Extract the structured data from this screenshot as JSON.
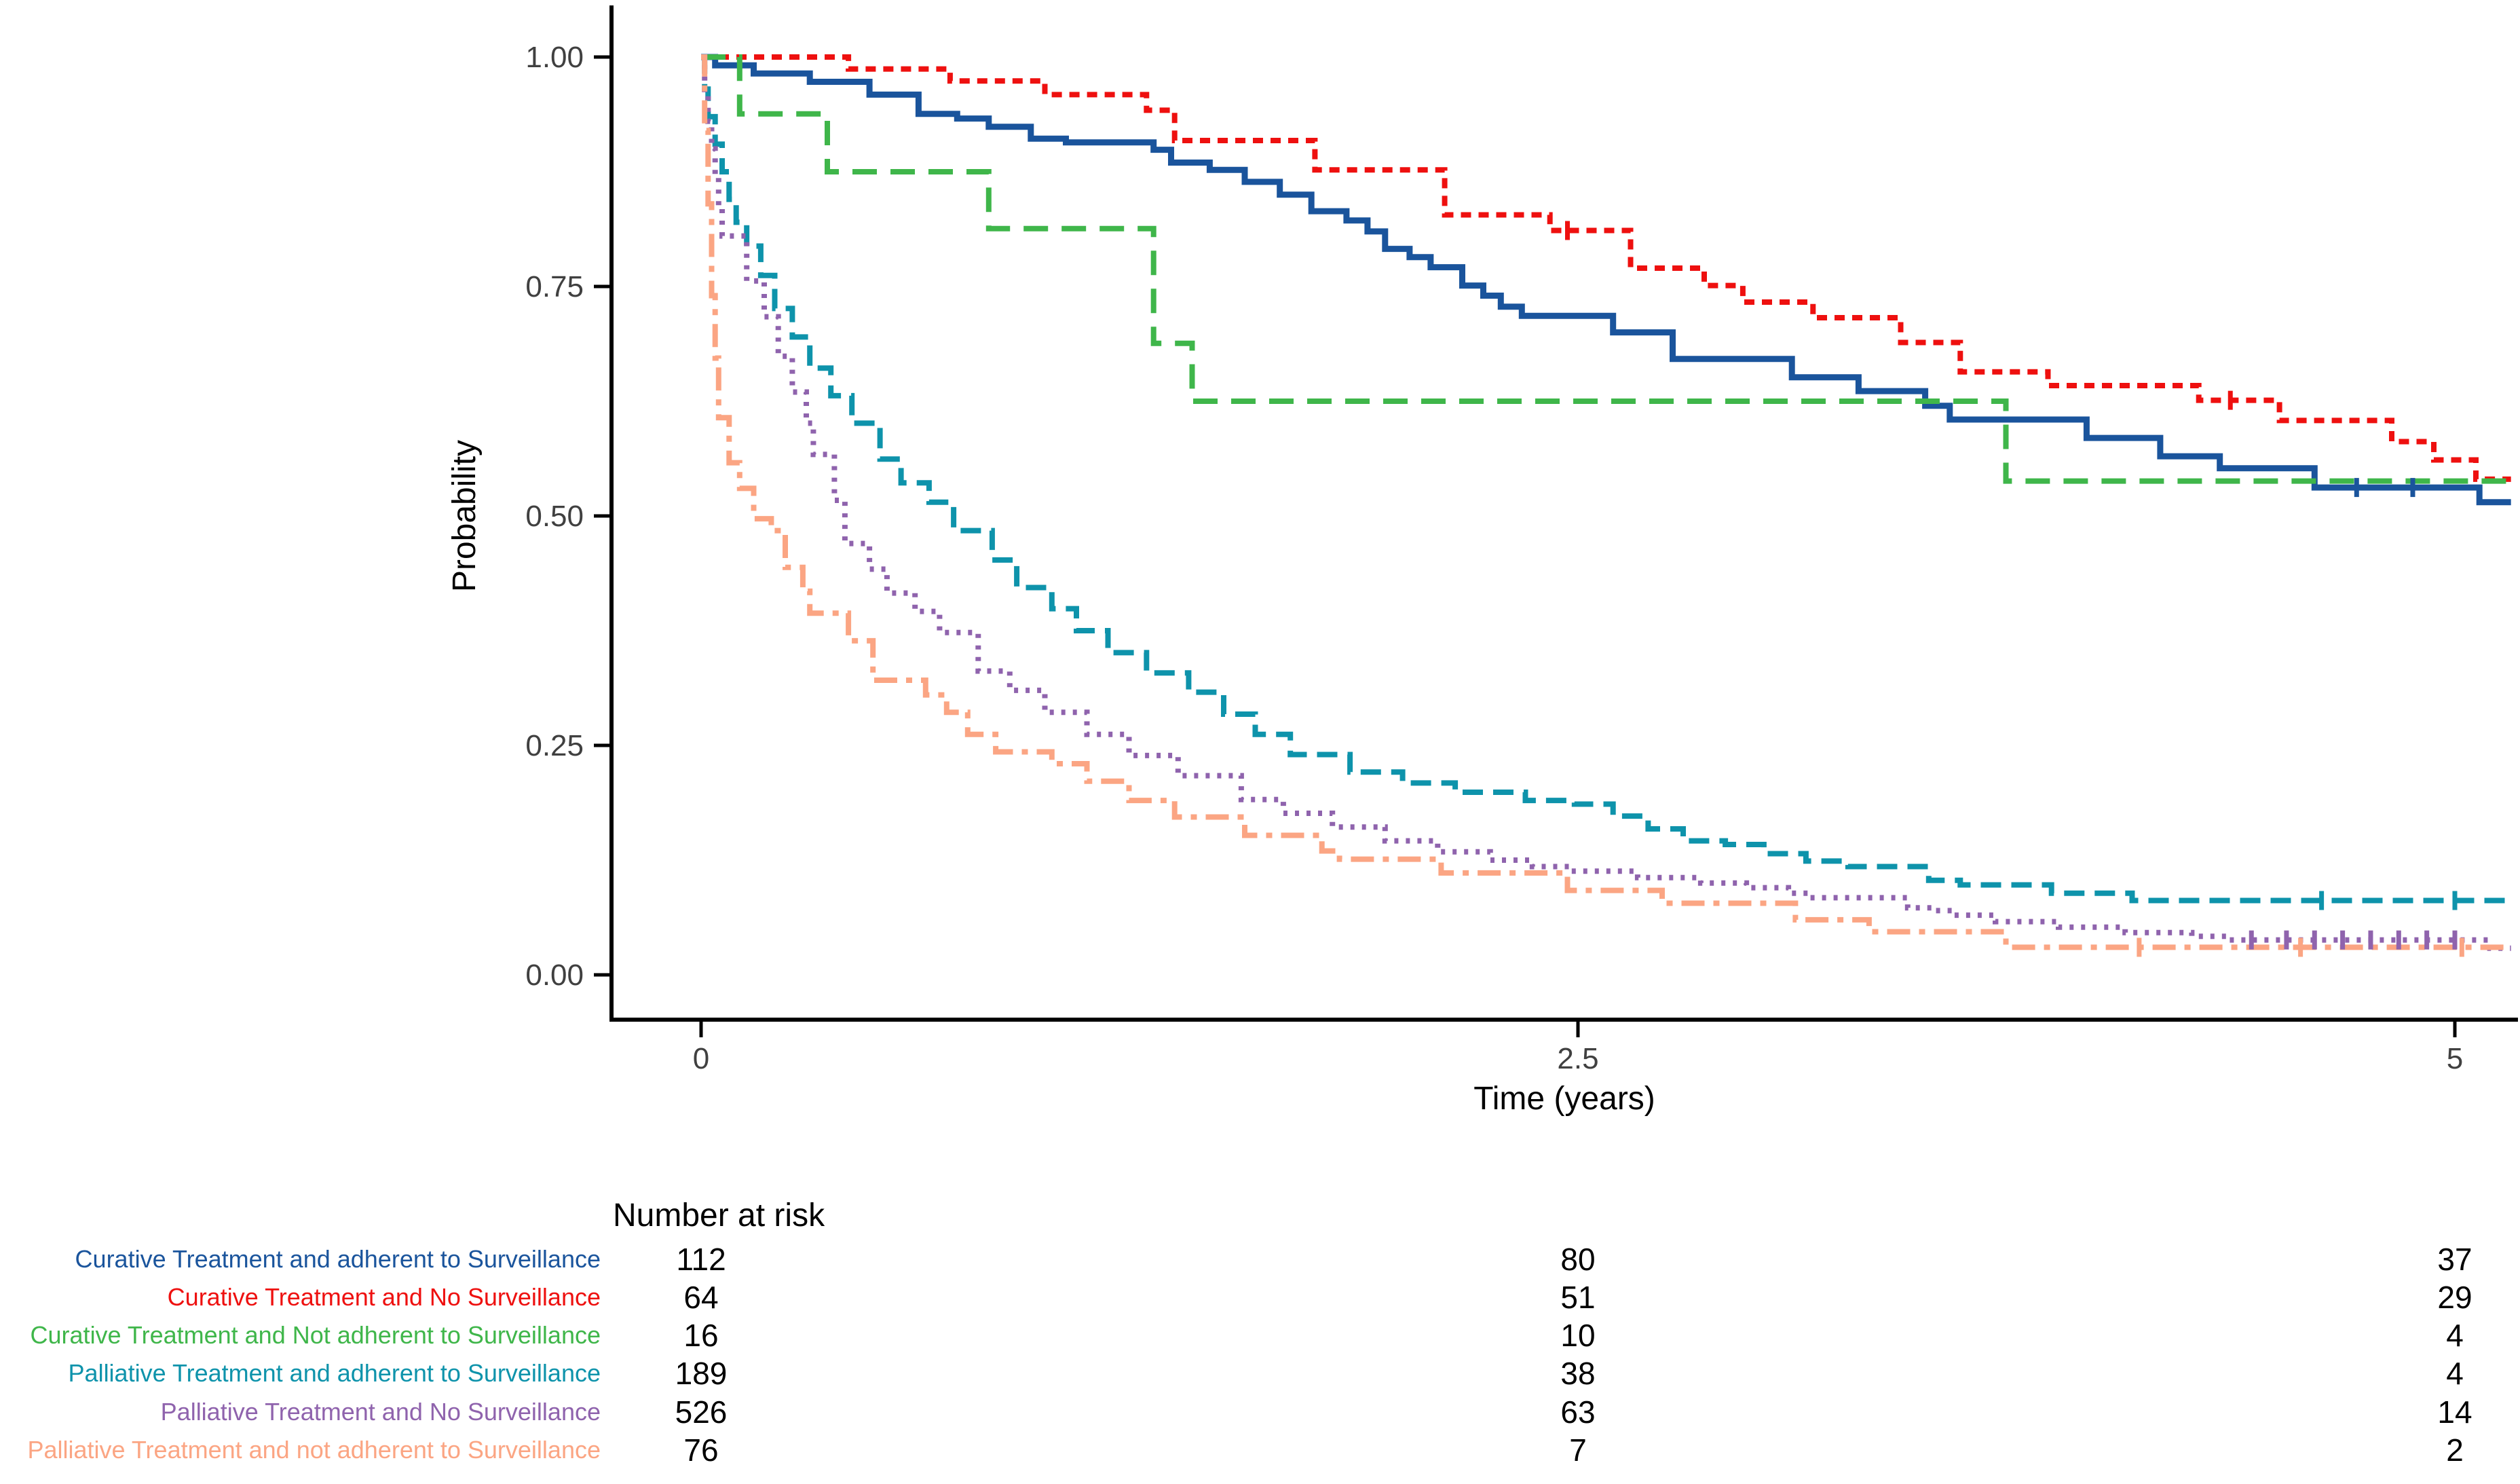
{
  "figure": {
    "y_axis": {
      "label": "Probability",
      "tick_labels": [
        "1.00",
        "0.75",
        "0.50",
        "0.25",
        "0.00"
      ],
      "tick_values": [
        1.0,
        0.75,
        0.5,
        0.25,
        0.0
      ]
    },
    "x_axis": {
      "label": "Time (years)",
      "tick_labels": [
        "0",
        "2.5",
        "5"
      ],
      "tick_values": [
        0,
        2.5,
        5
      ]
    }
  },
  "risk_table": {
    "title": "Number at risk",
    "time_values": [
      0,
      2.5,
      5
    ],
    "rows": [
      {
        "label": "Curative Treatment and adherent to Surveillance",
        "color": "#1a549c",
        "values": [
          "112",
          "80",
          "37"
        ]
      },
      {
        "label": "Curative Treatment and No Surveillance",
        "color": "#ee100f",
        "values": [
          "64",
          "51",
          "29"
        ]
      },
      {
        "label": "Curative Treatment and Not adherent to Surveillance",
        "color": "#3fb64a",
        "values": [
          "16",
          "10",
          "4"
        ]
      },
      {
        "label": "Palliative Treatment and adherent to Surveillance",
        "color": "#0e93ab",
        "values": [
          "189",
          "38",
          "4"
        ]
      },
      {
        "label": "Palliative Treatment and No Surveillance",
        "color": "#8f63ad",
        "values": [
          "526",
          "63",
          "14"
        ]
      },
      {
        "label": "Palliative Treatment and not adherent to Surveillance",
        "color": "#fba583",
        "values": [
          "76",
          "7",
          "2"
        ]
      }
    ]
  },
  "chart_data": {
    "type": "line",
    "subtype": "kaplan-meier-step",
    "title": "",
    "xlabel": "Time (years)",
    "ylabel": "Probability",
    "xlim": [
      -0.26,
      5.19
    ],
    "ylim": [
      0.0,
      1.0
    ],
    "x_ticks": [
      0,
      2.5,
      5
    ],
    "y_ticks": [
      0.0,
      0.25,
      0.5,
      0.75,
      1.0
    ],
    "grid": false,
    "legend_position": "none",
    "draw_end_time": 5.16,
    "series": [
      {
        "name": "Curative Treatment and adherent to Surveillance",
        "color": "#1a549c",
        "linetype": "solid",
        "points": [
          [
            0,
            1.0
          ],
          [
            0.04,
            0.991
          ],
          [
            0.15,
            0.982
          ],
          [
            0.31,
            0.973
          ],
          [
            0.48,
            0.959
          ],
          [
            0.62,
            0.938
          ],
          [
            0.73,
            0.933
          ],
          [
            0.82,
            0.924
          ],
          [
            0.94,
            0.911
          ],
          [
            1.04,
            0.907
          ],
          [
            1.29,
            0.899
          ],
          [
            1.34,
            0.885
          ],
          [
            1.45,
            0.877
          ],
          [
            1.55,
            0.864
          ],
          [
            1.65,
            0.85
          ],
          [
            1.74,
            0.832
          ],
          [
            1.84,
            0.822
          ],
          [
            1.9,
            0.81
          ],
          [
            1.95,
            0.791
          ],
          [
            2.02,
            0.782
          ],
          [
            2.08,
            0.771
          ],
          [
            2.17,
            0.751
          ],
          [
            2.23,
            0.74
          ],
          [
            2.28,
            0.728
          ],
          [
            2.34,
            0.718
          ],
          [
            2.6,
            0.7
          ],
          [
            2.77,
            0.671
          ],
          [
            3.11,
            0.651
          ],
          [
            3.3,
            0.636
          ],
          [
            3.49,
            0.62
          ],
          [
            3.56,
            0.605
          ],
          [
            3.95,
            0.585
          ],
          [
            4.16,
            0.565
          ],
          [
            4.33,
            0.552
          ],
          [
            4.6,
            0.531
          ],
          [
            5.07,
            0.515
          ]
        ],
        "censor_marks": [
          [
            4.72,
            0.531
          ],
          [
            4.88,
            0.531
          ]
        ]
      },
      {
        "name": "Curative Treatment and No Surveillance",
        "color": "#ee100f",
        "linetype": "dotted",
        "points": [
          [
            0,
            1.0
          ],
          [
            0.42,
            0.987
          ],
          [
            0.71,
            0.974
          ],
          [
            0.98,
            0.959
          ],
          [
            1.27,
            0.942
          ],
          [
            1.35,
            0.909
          ],
          [
            1.75,
            0.877
          ],
          [
            2.12,
            0.828
          ],
          [
            2.42,
            0.811
          ],
          [
            2.65,
            0.77
          ],
          [
            2.86,
            0.751
          ],
          [
            2.97,
            0.733
          ],
          [
            3.17,
            0.716
          ],
          [
            3.42,
            0.689
          ],
          [
            3.59,
            0.657
          ],
          [
            3.84,
            0.642
          ],
          [
            4.27,
            0.626
          ],
          [
            4.5,
            0.604
          ],
          [
            4.82,
            0.581
          ],
          [
            4.94,
            0.561
          ],
          [
            5.06,
            0.54
          ]
        ],
        "censor_marks": [
          [
            2.47,
            0.811
          ],
          [
            4.36,
            0.626
          ]
        ]
      },
      {
        "name": "Curative Treatment and Not adherent to Surveillance",
        "color": "#3fb64a",
        "linetype": "dashed",
        "points": [
          [
            0,
            1.0
          ],
          [
            0.11,
            0.938
          ],
          [
            0.36,
            0.875
          ],
          [
            0.82,
            0.813
          ],
          [
            1.29,
            0.688
          ],
          [
            1.4,
            0.625
          ],
          [
            3.72,
            0.538
          ]
        ],
        "censor_marks": []
      },
      {
        "name": "Palliative Treatment and adherent to Surveillance",
        "color": "#0e93ab",
        "linetype": "longdash",
        "points": [
          [
            0,
            1.0
          ],
          [
            0.01,
            0.965
          ],
          [
            0.02,
            0.935
          ],
          [
            0.04,
            0.905
          ],
          [
            0.06,
            0.875
          ],
          [
            0.08,
            0.845
          ],
          [
            0.1,
            0.82
          ],
          [
            0.13,
            0.794
          ],
          [
            0.17,
            0.762
          ],
          [
            0.21,
            0.726
          ],
          [
            0.26,
            0.695
          ],
          [
            0.31,
            0.661
          ],
          [
            0.37,
            0.631
          ],
          [
            0.43,
            0.601
          ],
          [
            0.51,
            0.562
          ],
          [
            0.57,
            0.536
          ],
          [
            0.65,
            0.515
          ],
          [
            0.72,
            0.484
          ],
          [
            0.83,
            0.452
          ],
          [
            0.9,
            0.422
          ],
          [
            1.0,
            0.399
          ],
          [
            1.07,
            0.375
          ],
          [
            1.16,
            0.351
          ],
          [
            1.27,
            0.329
          ],
          [
            1.39,
            0.308
          ],
          [
            1.49,
            0.284
          ],
          [
            1.58,
            0.262
          ],
          [
            1.68,
            0.24
          ],
          [
            1.85,
            0.221
          ],
          [
            2.0,
            0.209
          ],
          [
            2.15,
            0.199
          ],
          [
            2.35,
            0.19
          ],
          [
            2.49,
            0.186
          ],
          [
            2.6,
            0.173
          ],
          [
            2.7,
            0.159
          ],
          [
            2.8,
            0.146
          ],
          [
            2.92,
            0.142
          ],
          [
            3.03,
            0.132
          ],
          [
            3.15,
            0.124
          ],
          [
            3.27,
            0.118
          ],
          [
            3.5,
            0.103
          ],
          [
            3.59,
            0.098
          ],
          [
            3.85,
            0.089
          ],
          [
            4.08,
            0.081
          ]
        ],
        "censor_marks": [
          [
            4.62,
            0.081
          ],
          [
            5.0,
            0.081
          ]
        ]
      },
      {
        "name": "Palliative Treatment and No Surveillance",
        "color": "#8f63ad",
        "linetype": "dot",
        "points": [
          [
            0,
            1.0
          ],
          [
            0.01,
            0.96
          ],
          [
            0.02,
            0.93
          ],
          [
            0.03,
            0.9
          ],
          [
            0.04,
            0.87
          ],
          [
            0.05,
            0.837
          ],
          [
            0.06,
            0.805
          ],
          [
            0.13,
            0.756
          ],
          [
            0.18,
            0.717
          ],
          [
            0.22,
            0.674
          ],
          [
            0.26,
            0.635
          ],
          [
            0.3,
            0.601
          ],
          [
            0.32,
            0.567
          ],
          [
            0.38,
            0.517
          ],
          [
            0.41,
            0.47
          ],
          [
            0.48,
            0.442
          ],
          [
            0.53,
            0.416
          ],
          [
            0.61,
            0.396
          ],
          [
            0.68,
            0.373
          ],
          [
            0.79,
            0.331
          ],
          [
            0.88,
            0.31
          ],
          [
            0.98,
            0.286
          ],
          [
            1.1,
            0.262
          ],
          [
            1.22,
            0.239
          ],
          [
            1.36,
            0.217
          ],
          [
            1.54,
            0.191
          ],
          [
            1.66,
            0.176
          ],
          [
            1.8,
            0.161
          ],
          [
            1.95,
            0.146
          ],
          [
            2.1,
            0.134
          ],
          [
            2.25,
            0.125
          ],
          [
            2.37,
            0.118
          ],
          [
            2.48,
            0.113
          ],
          [
            2.67,
            0.106
          ],
          [
            2.85,
            0.1
          ],
          [
            2.98,
            0.095
          ],
          [
            3.1,
            0.089
          ],
          [
            3.16,
            0.084
          ],
          [
            3.44,
            0.073
          ],
          [
            3.52,
            0.07
          ],
          [
            3.57,
            0.065
          ],
          [
            3.69,
            0.058
          ],
          [
            3.87,
            0.052
          ],
          [
            4.06,
            0.046
          ],
          [
            4.25,
            0.042
          ],
          [
            4.35,
            0.038
          ],
          [
            5.1,
            0.029
          ]
        ],
        "censor_marks": [
          [
            4.42,
            0.038
          ],
          [
            4.52,
            0.038
          ],
          [
            4.6,
            0.038
          ],
          [
            4.68,
            0.038
          ],
          [
            4.76,
            0.038
          ],
          [
            4.84,
            0.038
          ],
          [
            4.92,
            0.038
          ],
          [
            5.0,
            0.038
          ]
        ]
      },
      {
        "name": "Palliative Treatment and not adherent to Surveillance",
        "color": "#fba583",
        "linetype": "dotdash",
        "points": [
          [
            0,
            1.0
          ],
          [
            0.01,
            0.92
          ],
          [
            0.02,
            0.84
          ],
          [
            0.03,
            0.74
          ],
          [
            0.04,
            0.672
          ],
          [
            0.05,
            0.607
          ],
          [
            0.08,
            0.558
          ],
          [
            0.11,
            0.53
          ],
          [
            0.15,
            0.497
          ],
          [
            0.2,
            0.484
          ],
          [
            0.24,
            0.444
          ],
          [
            0.29,
            0.418
          ],
          [
            0.31,
            0.394
          ],
          [
            0.42,
            0.364
          ],
          [
            0.49,
            0.321
          ],
          [
            0.64,
            0.305
          ],
          [
            0.7,
            0.286
          ],
          [
            0.76,
            0.262
          ],
          [
            0.84,
            0.243
          ],
          [
            1.0,
            0.23
          ],
          [
            1.1,
            0.211
          ],
          [
            1.22,
            0.19
          ],
          [
            1.35,
            0.172
          ],
          [
            1.55,
            0.152
          ],
          [
            1.77,
            0.135
          ],
          [
            1.82,
            0.126
          ],
          [
            2.11,
            0.111
          ],
          [
            2.47,
            0.092
          ],
          [
            2.74,
            0.078
          ],
          [
            3.12,
            0.06
          ],
          [
            3.33,
            0.047
          ],
          [
            3.72,
            0.03
          ]
        ],
        "censor_marks": [
          [
            4.1,
            0.03
          ],
          [
            4.56,
            0.03
          ],
          [
            5.02,
            0.03
          ]
        ]
      }
    ]
  }
}
